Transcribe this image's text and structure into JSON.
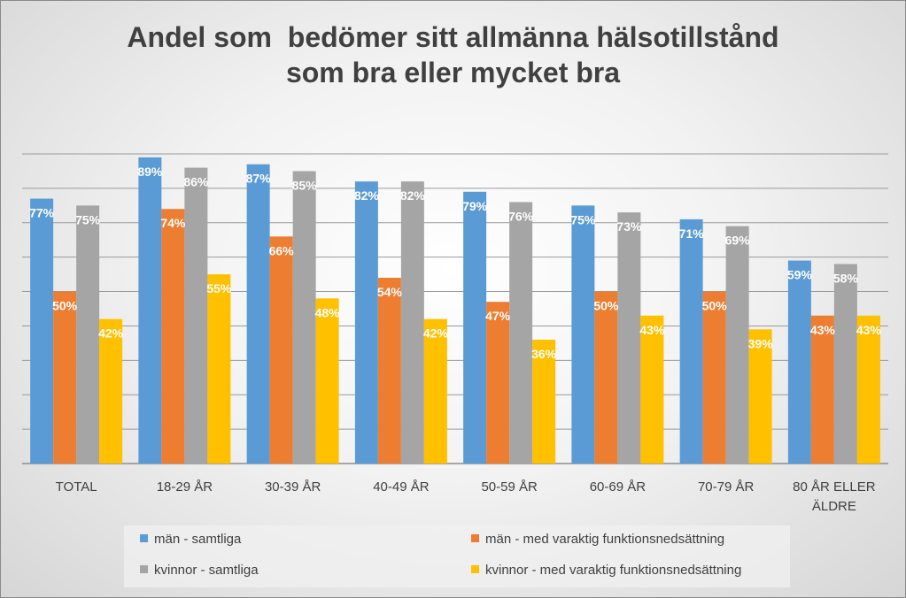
{
  "chart_data": {
    "type": "bar",
    "title_lines": [
      "Andel som  bedömer sitt allmänna hälsotillstånd",
      "som bra eller mycket bra"
    ],
    "categories": [
      "TOTAL",
      "18-29 ÅR",
      "30-39 ÅR",
      "40-49 ÅR",
      "50-59 ÅR",
      "60-69 ÅR",
      "70-79 ÅR",
      "80 ÅR ELLER ÄLDRE"
    ],
    "category_lines": [
      [
        "TOTAL"
      ],
      [
        "18-29 ÅR"
      ],
      [
        "30-39 ÅR"
      ],
      [
        "40-49 ÅR"
      ],
      [
        "50-59 ÅR"
      ],
      [
        "60-69 ÅR"
      ],
      [
        "70-79 ÅR"
      ],
      [
        "80 ÅR ELLER",
        "ÄLDRE"
      ]
    ],
    "series": [
      {
        "name": "män - samtliga",
        "color": "#5b9bd5",
        "values": [
          77,
          89,
          87,
          82,
          79,
          75,
          71,
          59
        ],
        "labels": [
          "77%",
          "89%",
          "87%",
          "82%",
          "79%",
          "75%",
          "71%",
          "59%"
        ]
      },
      {
        "name": "män - med varaktig funktionsnedsättning",
        "color": "#ed7d31",
        "values": [
          50,
          74,
          66,
          54,
          47,
          50,
          50,
          43
        ],
        "labels": [
          "50%",
          "74%",
          "66%",
          "54%",
          "47%",
          "50%",
          "50%",
          "43%"
        ]
      },
      {
        "name": "kvinnor - samtliga",
        "color": "#a5a5a5",
        "values": [
          75,
          86,
          85,
          82,
          76,
          73,
          69,
          58
        ],
        "labels": [
          "75%",
          "86%",
          "85%",
          "82%",
          "76%",
          "73%",
          "69%",
          "58%"
        ]
      },
      {
        "name": "kvinnor - med varaktig funktionsnedsättning",
        "color": "#ffc000",
        "values": [
          42,
          55,
          48,
          42,
          36,
          43,
          39,
          43
        ],
        "labels": [
          "42%",
          "55%",
          "48%",
          "42%",
          "36%",
          "43%",
          "39%",
          "43%"
        ]
      }
    ],
    "ylim": [
      0,
      90
    ],
    "y_axis_visible": false,
    "grid": true,
    "legend_position": "bottom",
    "data_label_color": "#ffffff"
  }
}
